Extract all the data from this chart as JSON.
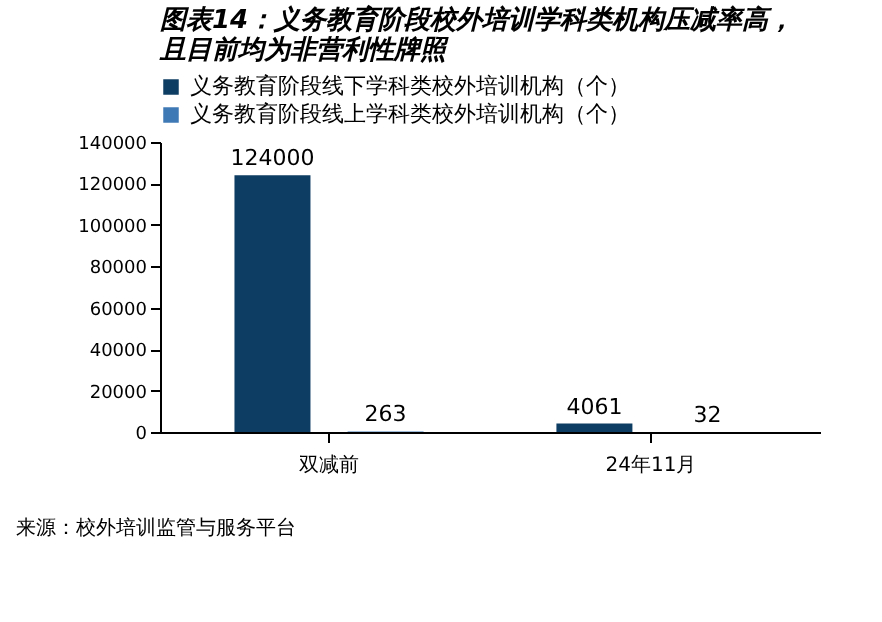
{
  "chart_data": {
    "type": "bar",
    "title": [
      "图表14：义务教育阶段校外培训学科类机构压减率高，",
      "且目前均为非营利性牌照"
    ],
    "categories": [
      "双减前",
      "24年11月"
    ],
    "series": [
      {
        "name": "义务教育阶段线下学科类校外培训机构（个）",
        "color": "#0e3d63",
        "values": [
          124000,
          4061
        ]
      },
      {
        "name": "义务教育阶段线上学科类校外培训机构（个）",
        "color": "#3f79b5",
        "values": [
          263,
          32
        ]
      }
    ],
    "ylim": [
      0,
      140000
    ],
    "yticks": [
      0,
      20000,
      40000,
      60000,
      80000,
      100000,
      120000,
      140000
    ],
    "data_labels": true,
    "grid": false,
    "legend": "top",
    "annotations": [
      "来源：校外培训监管与服务平台"
    ]
  }
}
